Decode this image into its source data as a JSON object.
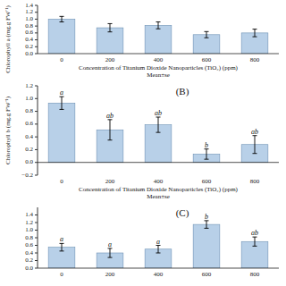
{
  "chart_data": [
    {
      "type": "bar",
      "categories": [
        0,
        200,
        400,
        600,
        800
      ],
      "values": [
        1.0,
        0.75,
        0.82,
        0.55,
        0.6
      ],
      "errors": [
        0.08,
        0.12,
        0.1,
        0.09,
        0.11
      ],
      "color": "#b8d0e8",
      "ylim": [
        0.0,
        1.4
      ],
      "yticks": [
        {
          "value": 0.0,
          "label": "0.0"
        },
        0.2,
        0.4,
        0.6,
        0.8,
        {
          "value": 1.0,
          "label": "1.0"
        },
        1.2,
        1.4
      ],
      "x_label": "Concentration of Titanium Dioxide Nanoparticles (TiO₂) (ppm)\nMean±se",
      "y_label": "Chlorophyll a (mg.g FW⁻¹)",
      "grid": false
    },
    {
      "type": "bar",
      "title": "(B)",
      "categories": [
        0,
        200,
        400,
        600,
        800
      ],
      "values": [
        0.93,
        0.51,
        0.59,
        0.13,
        0.28
      ],
      "errors": [
        0.1,
        0.16,
        0.12,
        0.08,
        0.14
      ],
      "annotations": [
        "a",
        "ab",
        "ab",
        "b",
        "ab"
      ],
      "color": "#b8d0e8",
      "ylim": [
        -0.2,
        1.2
      ],
      "yticks": [
        {
          "value": -0.2,
          "label": "−0.2"
        },
        {
          "value": 0.0,
          "label": "0.0"
        },
        0.2,
        0.4,
        0.6,
        0.8,
        {
          "value": 1.0,
          "label": "1.0"
        },
        1.2
      ],
      "x_label": "Concentration of Titanium Dioxide Nanoparticles (TiO₂) (ppm)\nMean±se",
      "y_label": "Chlorophyll b (mg.g FW⁻¹)",
      "grid": false
    },
    {
      "type": "bar",
      "title": "(C)",
      "categories": [
        0,
        200,
        400,
        600,
        800
      ],
      "values": [
        0.55,
        0.4,
        0.5,
        1.15,
        0.7
      ],
      "errors": [
        0.1,
        0.12,
        0.1,
        0.1,
        0.12
      ],
      "annotations": [
        "a",
        "a",
        "a",
        "b",
        "ab"
      ],
      "color": "#b8d0e8",
      "ylim": [
        0.0,
        1.6
      ],
      "yticks": [
        {
          "value": 0.0,
          "label": "0.0"
        },
        0.2,
        0.4,
        0.6,
        0.8,
        {
          "value": 1.0,
          "label": "1.0"
        },
        1.2,
        1.4
      ],
      "grid": false
    }
  ]
}
